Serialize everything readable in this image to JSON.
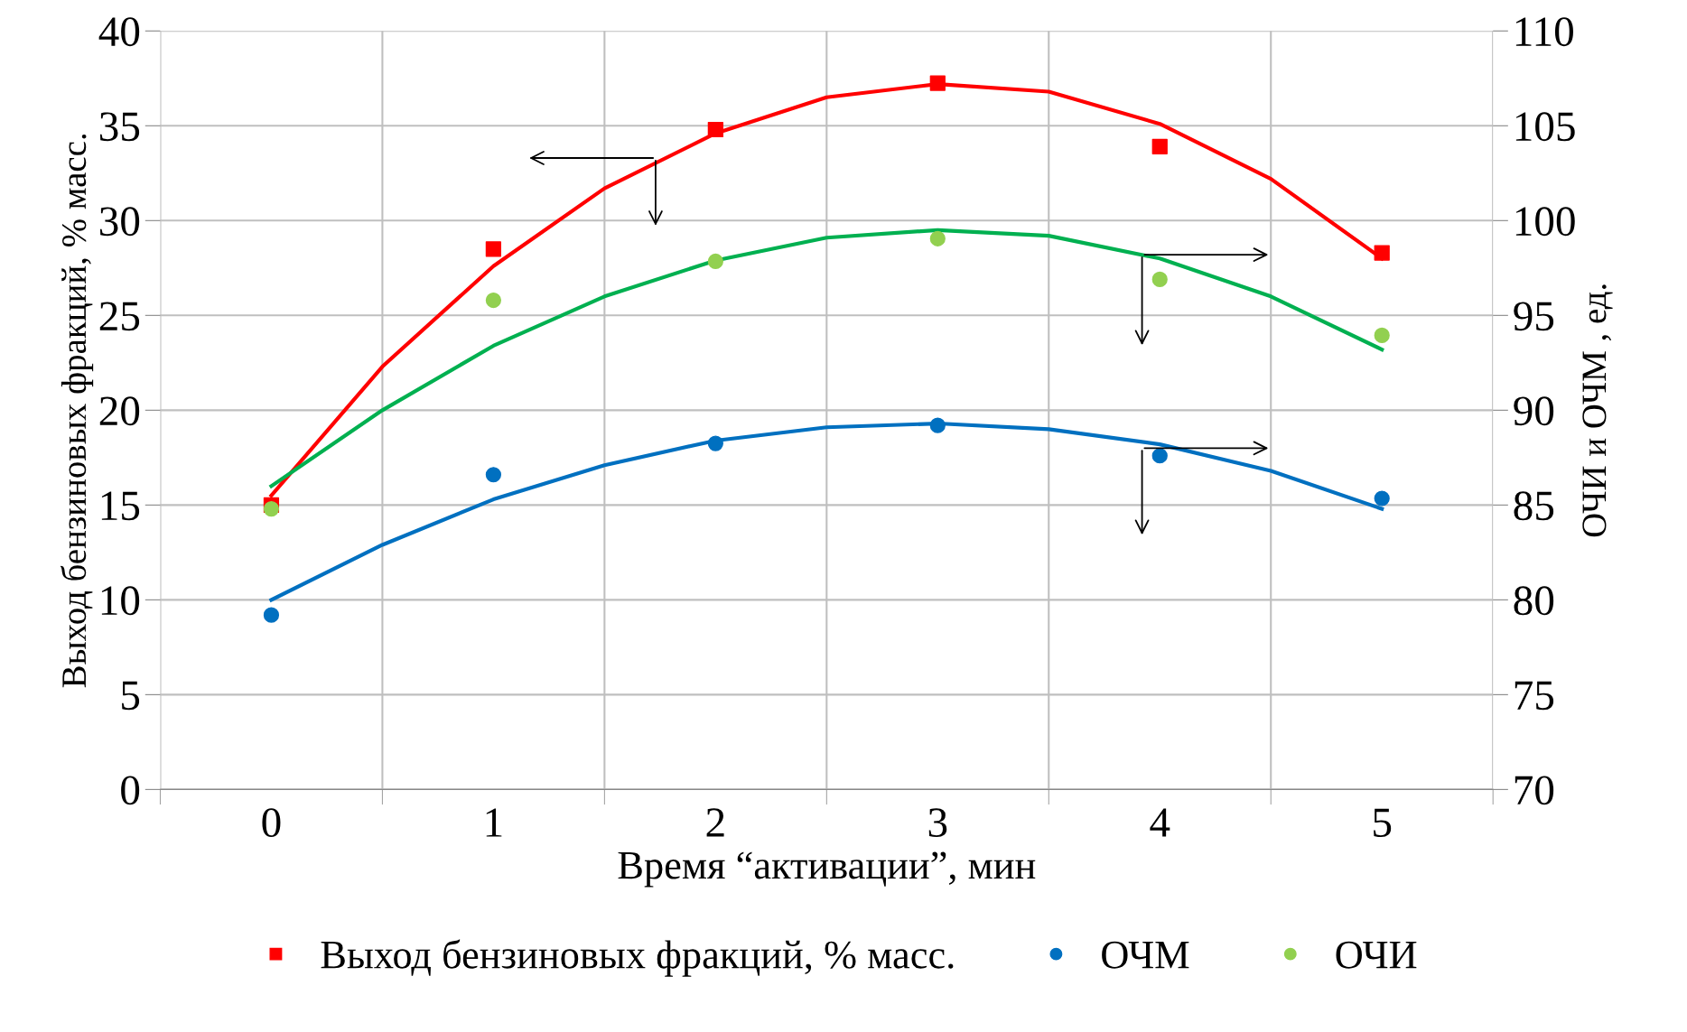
{
  "chart_data": {
    "type": "scatter",
    "xlabel": "Время “активации”, мин",
    "ylabel": "Выход бензиновых фракций, % масс.",
    "y2label": "ОЧИ и ОЧМ , ед.",
    "x": [
      0,
      1,
      2,
      3,
      4,
      5
    ],
    "xlim": [
      -0.5,
      5.5
    ],
    "xticks": [
      0,
      1,
      2,
      3,
      4,
      5
    ],
    "ylim": [
      0,
      40
    ],
    "yticks": [
      0,
      5,
      10,
      15,
      20,
      25,
      30,
      35,
      40
    ],
    "y2lim": [
      70,
      110
    ],
    "y2ticks": [
      70,
      75,
      80,
      85,
      90,
      95,
      100,
      105,
      110
    ],
    "grid": true,
    "legend": "bottom",
    "series": [
      {
        "name": "Выход бензиновых фракций, % масс.",
        "color": "#ff0000",
        "marker": "square",
        "values": [
          15.0,
          28.5,
          34.8,
          37.25,
          33.9,
          28.3
        ]
      },
      {
        "name": "ОЧМ",
        "color": "#0070c0",
        "marker": "circle",
        "axis": "y2",
        "values": [
          79.2,
          86.6,
          88.25,
          89.2,
          87.6,
          85.35
        ]
      },
      {
        "name": "ОЧИ",
        "color": "#92d050",
        "marker": "circle",
        "axis": "y2",
        "values": [
          84.8,
          95.8,
          97.85,
          99.05,
          96.9,
          93.95
        ]
      },
      {
        "type": "line",
        "color": "#ff0000",
        "x": [
          0,
          0.5,
          1,
          1.5,
          2,
          2.5,
          3,
          3.5,
          4,
          4.5,
          5
        ],
        "values": [
          15.5,
          22.3,
          27.6,
          31.7,
          34.6,
          36.5,
          37.2,
          36.8,
          35.1,
          32.2,
          28.0
        ]
      },
      {
        "type": "line",
        "color": "#0070c0",
        "axis": "y2",
        "x": [
          0,
          0.5,
          1,
          1.5,
          2,
          2.5,
          3,
          3.5,
          4,
          4.5,
          5
        ],
        "values": [
          80.0,
          82.9,
          85.3,
          87.1,
          88.4,
          89.1,
          89.3,
          89.0,
          88.2,
          86.8,
          84.8
        ]
      },
      {
        "type": "line",
        "color": "#00b050",
        "axis": "y2",
        "x": [
          0,
          0.5,
          1,
          1.5,
          2,
          2.5,
          3,
          3.5,
          4,
          4.5,
          5
        ],
        "values": [
          86.0,
          90.0,
          93.4,
          96.0,
          97.9,
          99.1,
          99.5,
          99.2,
          98.0,
          96.0,
          93.2
        ]
      }
    ]
  }
}
